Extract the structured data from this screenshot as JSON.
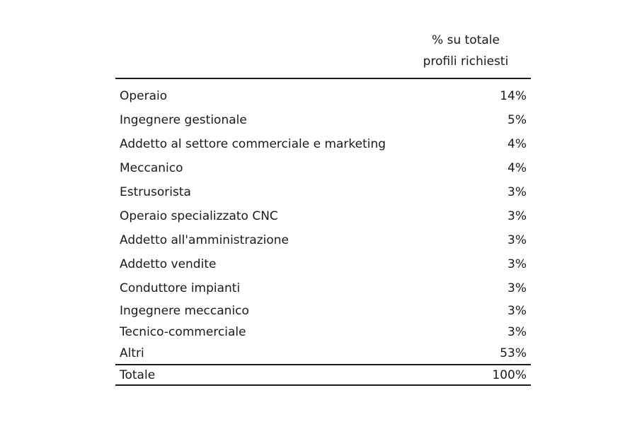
{
  "table": {
    "header": {
      "line1": "% su totale",
      "line2": "profili richiesti"
    },
    "rows": [
      {
        "label": "Operaio",
        "value": "14%"
      },
      {
        "label": "Ingegnere gestionale",
        "value": "5%"
      },
      {
        "label": "Addetto al settore commerciale e marketing",
        "value": "4%"
      },
      {
        "label": "Meccanico",
        "value": "4%"
      },
      {
        "label": "Estrusorista",
        "value": "3%"
      },
      {
        "label": "Operaio specializzato CNC",
        "value": "3%"
      },
      {
        "label": "Addetto all'amministrazione",
        "value": "3%"
      },
      {
        "label": "Addetto vendite",
        "value": "3%"
      },
      {
        "label": "Conduttore impianti",
        "value": "3%"
      },
      {
        "label": "Ingegnere meccanico",
        "value": "3%"
      },
      {
        "label": "Tecnico-commerciale",
        "value": "3%"
      },
      {
        "label": "Altri",
        "value": "53%"
      }
    ],
    "total": {
      "label": "Totale",
      "value": "100%"
    }
  }
}
